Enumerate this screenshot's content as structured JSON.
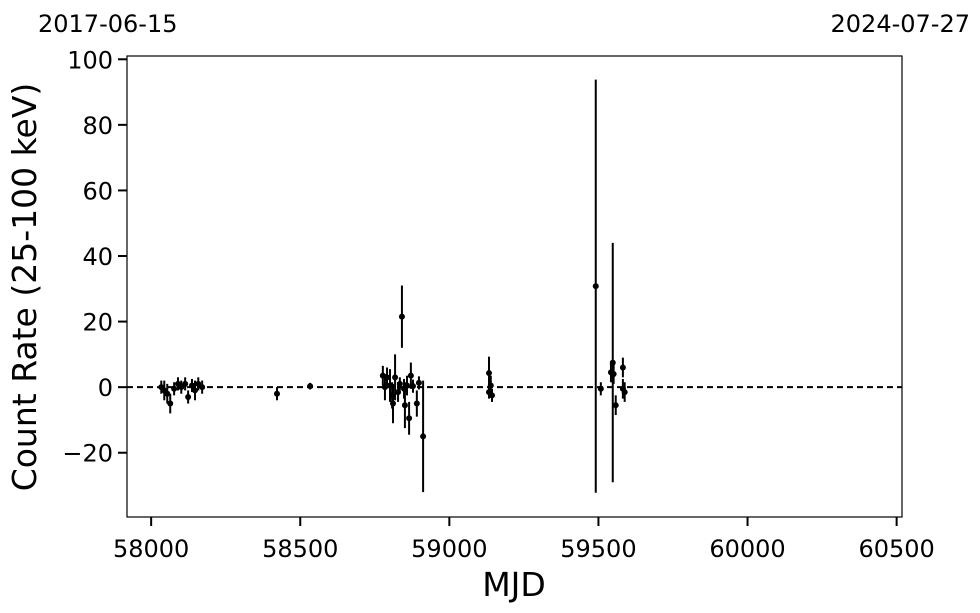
{
  "chart_data": {
    "type": "scatter",
    "top_labels": [
      "2017-06-15",
      "2024-07-27"
    ],
    "x_label": "MJD",
    "y_label": "Count Rate (25-100 keV)",
    "xlim": [
      57919,
      60518
    ],
    "ylim": [
      -39.6,
      101
    ],
    "xticks": [
      58000,
      58500,
      59000,
      59500,
      60000,
      60500
    ],
    "yticks": [
      {
        "value": -20,
        "label": "−20"
      },
      0,
      20,
      40,
      60,
      80,
      100
    ],
    "hline": 0,
    "color": "#000000",
    "series": [
      {
        "color": "#000000",
        "x": [
          58034,
          58044,
          58054,
          58064,
          58077,
          58090,
          58101,
          58114,
          58124,
          58137,
          58147,
          58158,
          58171,
          58422,
          58533,
          58777,
          58784,
          58791,
          58801,
          58808,
          58811,
          58818,
          58828,
          58834,
          58841,
          58848,
          58851,
          58858,
          58865,
          58871,
          58878,
          58891,
          58898,
          58912,
          59133,
          59133,
          59139,
          59143,
          59491,
          59508,
          59542,
          59548,
          59551,
          59558,
          59582,
          59582,
          59588
        ],
        "values": [
          0,
          -1,
          -2,
          -5,
          -0.5,
          1,
          0,
          1,
          -3,
          0.5,
          -1,
          1,
          0,
          -2,
          0.3,
          3.5,
          0,
          3,
          0.5,
          -2.5,
          -5,
          3,
          -1.5,
          1,
          21.5,
          -0.5,
          -5.5,
          0.5,
          -9.5,
          3.5,
          0.3,
          -5,
          1.3,
          -15,
          4.3,
          -1.5,
          0.5,
          -2.5,
          30.8,
          -0.5,
          4.5,
          7.5,
          4,
          -5.5,
          6,
          -0.5,
          -1.5
        ],
        "errors": [
          2,
          3,
          3,
          3,
          2,
          2,
          2,
          2,
          2,
          2,
          3,
          2,
          2,
          2,
          1,
          3,
          4,
          3,
          5,
          4,
          6,
          7,
          3,
          2,
          9.5,
          3,
          7,
          3,
          5,
          4,
          2,
          4,
          2,
          17,
          5,
          2,
          3,
          2,
          63,
          2,
          3,
          36.5,
          3,
          3,
          3,
          3,
          3
        ]
      }
    ]
  }
}
